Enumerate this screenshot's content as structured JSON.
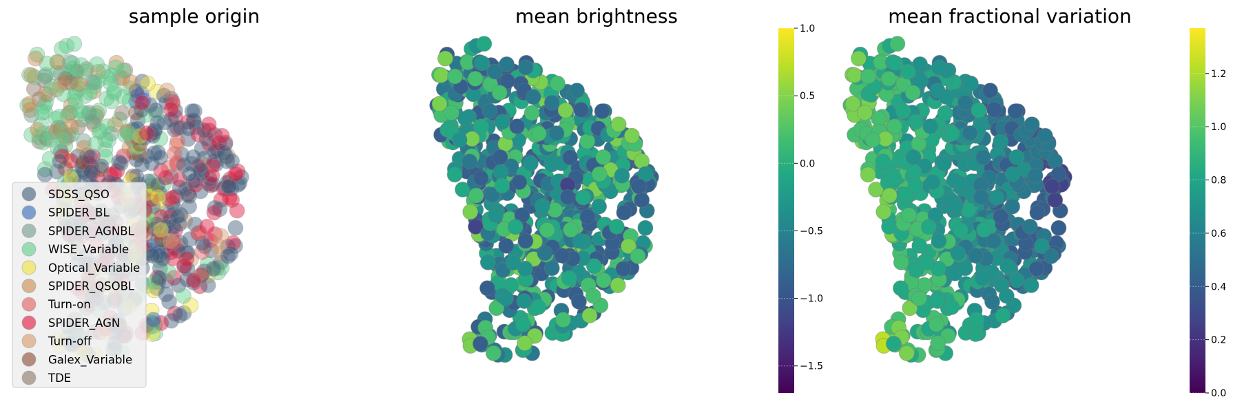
{
  "chart_data": [
    {
      "type": "scatter",
      "title": "sample origin",
      "legend_position": "lower-left",
      "series": [
        {
          "name": "SDSS_QSO",
          "color": "#3b5b79"
        },
        {
          "name": "SPIDER_BL",
          "color": "#2f66b7"
        },
        {
          "name": "SPIDER_AGNBL",
          "color": "#6f9b8a"
        },
        {
          "name": "WISE_Variable",
          "color": "#5fcf8c"
        },
        {
          "name": "Optical_Variable",
          "color": "#f0e33a"
        },
        {
          "name": "SPIDER_QSOBL",
          "color": "#c98a4c"
        },
        {
          "name": "Turn-on",
          "color": "#e45a5a"
        },
        {
          "name": "SPIDER_AGN",
          "color": "#e0123a"
        },
        {
          "name": "Turn-off",
          "color": "#d79a6a"
        },
        {
          "name": "Galex_Variable",
          "color": "#8a4a30"
        },
        {
          "name": "TDE",
          "color": "#8a7460"
        }
      ]
    },
    {
      "type": "scatter",
      "title": "mean brightness",
      "colormap": "viridis",
      "colorbar_range": [
        -1.7,
        1.0
      ],
      "colorbar_ticks": [
        "1.0",
        "0.5",
        "0.0",
        "−0.5",
        "−1.0",
        "−1.5"
      ]
    },
    {
      "type": "scatter",
      "title": "mean fractional variation",
      "colormap": "viridis",
      "colorbar_range": [
        0.0,
        1.37
      ],
      "colorbar_ticks": [
        "1.2",
        "1.0",
        "0.8",
        "0.6",
        "0.4",
        "0.2",
        "0.0"
      ]
    }
  ]
}
